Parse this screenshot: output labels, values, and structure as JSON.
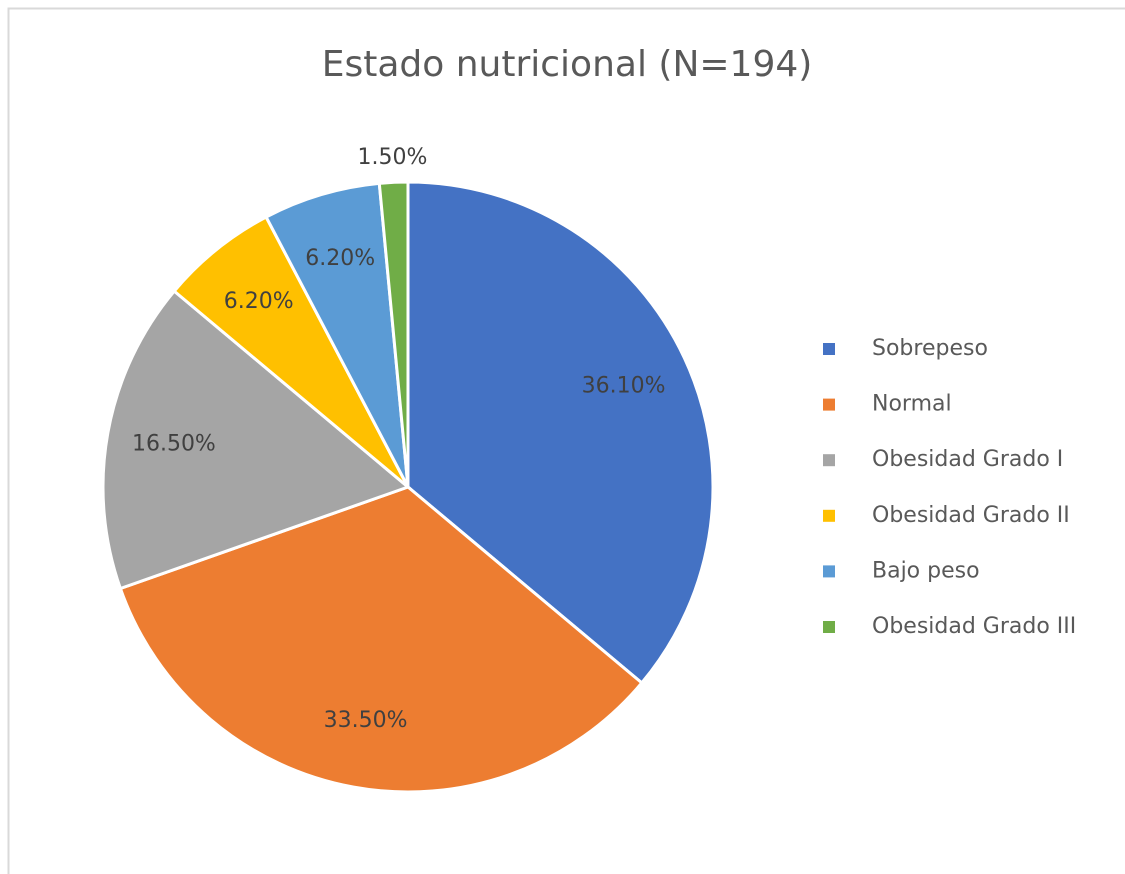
{
  "chart_data": {
    "type": "pie",
    "title": "Estado nutricional (N=194)",
    "categories": [
      "Sobrepeso",
      "Normal",
      "Obesidad Grado I",
      "Obesidad Grado II",
      "Bajo peso",
      "Obesidad Grado III"
    ],
    "values": [
      36.1,
      33.5,
      16.5,
      6.2,
      6.2,
      1.5
    ],
    "value_labels": [
      "36.10%",
      "33.50%",
      "16.50%",
      "6.20%",
      "6.20%",
      "1.50%"
    ],
    "colors": [
      "#4472c4",
      "#ed7d31",
      "#a5a5a5",
      "#ffc000",
      "#5b9bd5",
      "#70ad47"
    ],
    "legend": "right"
  }
}
